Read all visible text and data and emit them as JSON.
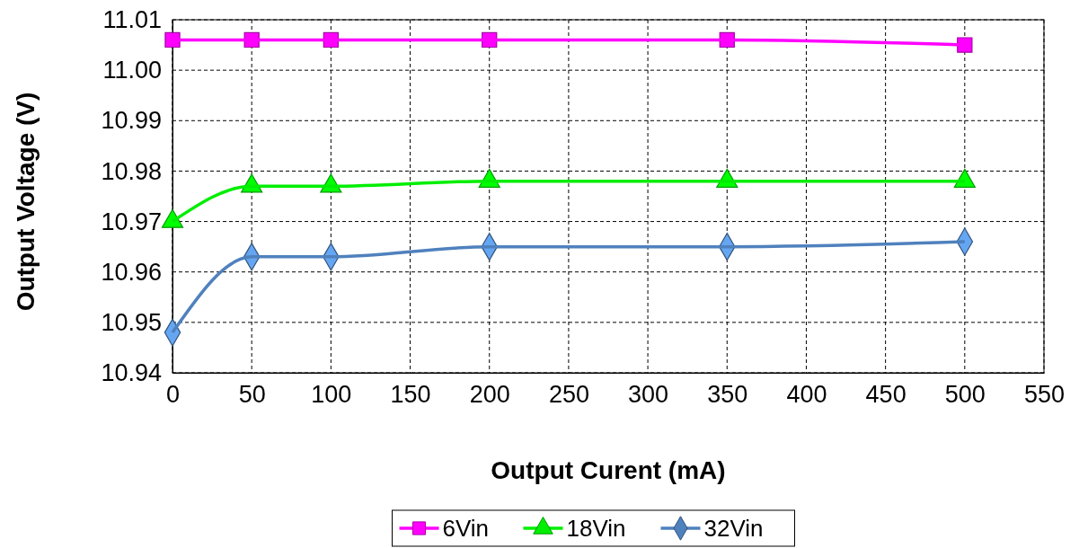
{
  "chart_data": {
    "type": "line",
    "xlabel": "Output Curent (mA)",
    "ylabel": "Output Voltage (V)",
    "x": [
      0,
      50,
      100,
      200,
      350,
      500
    ],
    "series": [
      {
        "name": "6Vin",
        "color": "#ff00ff",
        "marker": "square",
        "values": [
          11.006,
          11.006,
          11.006,
          11.006,
          11.006,
          11.005
        ]
      },
      {
        "name": "18Vin",
        "color": "#00ee00",
        "marker": "triangle",
        "values": [
          10.97,
          10.977,
          10.977,
          10.978,
          10.978,
          10.978
        ]
      },
      {
        "name": "32Vin",
        "color": "#4f81bd",
        "marker": "diamond",
        "values": [
          10.948,
          10.963,
          10.963,
          10.965,
          10.965,
          10.966
        ]
      }
    ],
    "xlim": [
      0,
      550
    ],
    "xticks": [
      0,
      50,
      100,
      150,
      200,
      250,
      300,
      350,
      400,
      450,
      500,
      550
    ],
    "ylim": [
      10.94,
      11.01
    ],
    "yticks": [
      {
        "value": 10.94,
        "label": "10.94"
      },
      {
        "value": 10.95,
        "label": "10.95"
      },
      {
        "value": 10.96,
        "label": "10.96"
      },
      {
        "value": 10.97,
        "label": "10.97"
      },
      {
        "value": 10.98,
        "label": "10.98"
      },
      {
        "value": 10.99,
        "label": "10.99"
      },
      {
        "value": 11.0,
        "label": "11.00"
      },
      {
        "value": 11.01,
        "label": "11.01"
      }
    ],
    "grid": true,
    "legend": "bottom",
    "line_style": "solid"
  }
}
